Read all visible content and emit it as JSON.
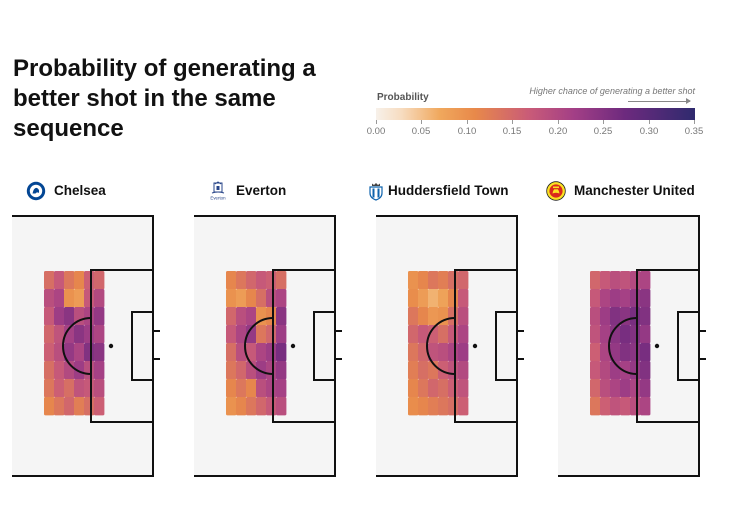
{
  "title": "Probability of generating a better shot in the same sequence",
  "legend": {
    "label": "Probability",
    "note": "Higher chance of generating a better shot",
    "ticks": [
      "0.00",
      "0.05",
      "0.10",
      "0.15",
      "0.20",
      "0.25",
      "0.30",
      "0.35"
    ],
    "range": [
      0,
      0.35
    ],
    "colors": [
      "#f7f1ea",
      "#f0a85d",
      "#e8894a",
      "#c95b78",
      "#a33f86",
      "#6d2a7e",
      "#2f2a6e"
    ]
  },
  "teams": [
    {
      "name": "Chelsea",
      "logo": "chelsea-crest-icon",
      "logo_color": "#034694"
    },
    {
      "name": "Everton",
      "logo": "everton-crest-icon",
      "logo_text": "Everton",
      "logo_color": "#274488"
    },
    {
      "name": "Huddersfield Town",
      "logo": "huddersfield-crest-icon",
      "logo_color": "#0e63ad"
    },
    {
      "name": "Manchester United",
      "logo": "manchester-united-crest-icon",
      "logo_color": "#da291c"
    }
  ],
  "chart_data": {
    "type": "heatmap",
    "title": "Probability of generating a better shot in the same sequence",
    "colorbar_label": "Probability",
    "colorbar_range": [
      0,
      0.35
    ],
    "colorbar_ticks": [
      0.0,
      0.05,
      0.1,
      0.15,
      0.2,
      0.25,
      0.3,
      0.35
    ],
    "panels": [
      {
        "team": "Chelsea",
        "rows": [
          [
            0.15,
            0.18,
            0.14,
            0.12,
            0.17,
            0.16
          ],
          [
            0.2,
            0.22,
            0.1,
            0.08,
            0.18,
            0.21
          ],
          [
            0.18,
            0.24,
            0.26,
            0.2,
            0.22,
            0.25
          ],
          [
            0.16,
            0.19,
            0.23,
            0.26,
            0.24,
            0.22
          ],
          [
            0.17,
            0.2,
            0.25,
            0.22,
            0.27,
            0.26
          ],
          [
            0.15,
            0.18,
            0.21,
            0.24,
            0.2,
            0.23
          ],
          [
            0.14,
            0.17,
            0.15,
            0.19,
            0.18,
            0.2
          ],
          [
            0.12,
            0.14,
            0.16,
            0.13,
            0.15,
            0.17
          ]
        ]
      },
      {
        "team": "Everton",
        "rows": [
          [
            0.12,
            0.14,
            0.16,
            0.18,
            0.17,
            0.15
          ],
          [
            0.1,
            0.08,
            0.12,
            0.15,
            0.2,
            0.22
          ],
          [
            0.16,
            0.2,
            0.22,
            0.1,
            0.12,
            0.26
          ],
          [
            0.18,
            0.22,
            0.25,
            0.14,
            0.16,
            0.24
          ],
          [
            0.15,
            0.2,
            0.18,
            0.22,
            0.24,
            0.28
          ],
          [
            0.14,
            0.16,
            0.2,
            0.24,
            0.22,
            0.25
          ],
          [
            0.12,
            0.14,
            0.12,
            0.2,
            0.22,
            0.23
          ],
          [
            0.1,
            0.12,
            0.14,
            0.16,
            0.18,
            0.2
          ]
        ]
      },
      {
        "team": "Huddersfield Town",
        "rows": [
          [
            0.1,
            0.12,
            0.14,
            0.13,
            0.15,
            0.16
          ],
          [
            0.11,
            0.08,
            0.05,
            0.07,
            0.12,
            0.18
          ],
          [
            0.14,
            0.12,
            0.09,
            0.1,
            0.15,
            0.2
          ],
          [
            0.16,
            0.18,
            0.17,
            0.15,
            0.18,
            0.22
          ],
          [
            0.14,
            0.16,
            0.19,
            0.2,
            0.22,
            0.24
          ],
          [
            0.13,
            0.15,
            0.14,
            0.17,
            0.19,
            0.21
          ],
          [
            0.12,
            0.14,
            0.16,
            0.15,
            0.17,
            0.19
          ],
          [
            0.11,
            0.12,
            0.13,
            0.14,
            0.15,
            0.17
          ]
        ]
      },
      {
        "team": "Manchester United",
        "rows": [
          [
            0.16,
            0.18,
            0.2,
            0.19,
            0.21,
            0.22
          ],
          [
            0.18,
            0.22,
            0.24,
            0.23,
            0.25,
            0.26
          ],
          [
            0.2,
            0.24,
            0.27,
            0.26,
            0.28,
            0.27
          ],
          [
            0.19,
            0.23,
            0.26,
            0.28,
            0.27,
            0.25
          ],
          [
            0.17,
            0.22,
            0.25,
            0.27,
            0.26,
            0.28
          ],
          [
            0.18,
            0.21,
            0.24,
            0.23,
            0.25,
            0.27
          ],
          [
            0.16,
            0.2,
            0.22,
            0.24,
            0.22,
            0.25
          ],
          [
            0.14,
            0.17,
            0.19,
            0.18,
            0.2,
            0.22
          ]
        ]
      }
    ]
  }
}
